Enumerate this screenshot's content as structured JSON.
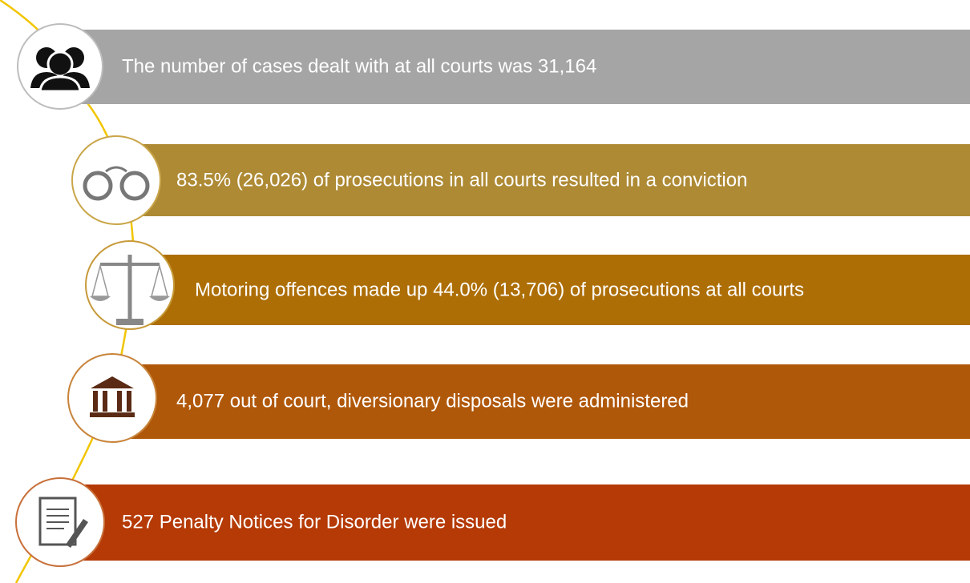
{
  "items": [
    {
      "text": "The number of cases dealt with at all courts was 31,164"
    },
    {
      "text": "83.5% (26,026)  of prosecutions in all courts resulted in a conviction"
    },
    {
      "text": "Motoring offences made up 44.0% (13,706)  of prosecutions at all courts"
    },
    {
      "text": "4,077  out of court, diversionary disposals were administered"
    },
    {
      "text": "527  Penalty Notices for Disorder were issued"
    }
  ]
}
